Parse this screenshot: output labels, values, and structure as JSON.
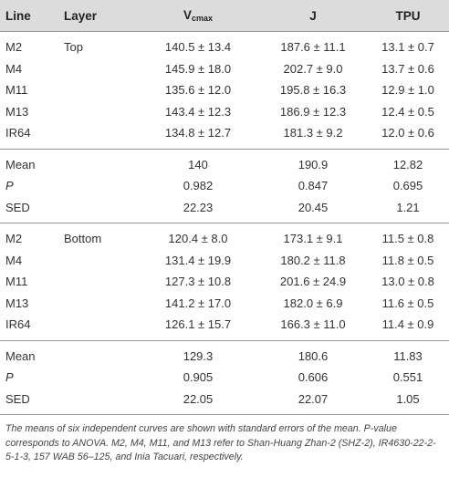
{
  "headers": {
    "line": "Line",
    "layer": "Layer",
    "vcmax_main": "V",
    "vcmax_sub": "cmax",
    "j": "J",
    "tpu": "TPU"
  },
  "top": {
    "layer": "Top",
    "rows": [
      {
        "line": "M2",
        "vcmax": "140.5 ± 13.4",
        "j": "187.6 ± 11.1",
        "tpu": "13.1 ± 0.7"
      },
      {
        "line": "M4",
        "vcmax": "145.9 ± 18.0",
        "j": "202.7 ± 9.0",
        "tpu": "13.7 ± 0.6"
      },
      {
        "line": "M11",
        "vcmax": "135.6 ± 12.0",
        "j": "195.8 ± 16.3",
        "tpu": "12.9 ± 1.0"
      },
      {
        "line": "M13",
        "vcmax": "143.4 ± 12.3",
        "j": "186.9 ± 12.3",
        "tpu": "12.4 ± 0.5"
      },
      {
        "line": "IR64",
        "vcmax": "134.8 ± 12.7",
        "j": "181.3 ± 9.2",
        "tpu": "12.0 ± 0.6"
      }
    ],
    "stats": [
      {
        "label": "Mean",
        "vcmax": "140",
        "j": "190.9",
        "tpu": "12.82"
      },
      {
        "label": "P",
        "vcmax": "0.982",
        "j": "0.847",
        "tpu": "0.695"
      },
      {
        "label": "SED",
        "vcmax": "22.23",
        "j": "20.45",
        "tpu": "1.21"
      }
    ]
  },
  "bottom": {
    "layer": "Bottom",
    "rows": [
      {
        "line": "M2",
        "vcmax": "120.4 ± 8.0",
        "j": "173.1 ± 9.1",
        "tpu": "11.5 ± 0.8"
      },
      {
        "line": "M4",
        "vcmax": "131.4 ± 19.9",
        "j": "180.2 ± 11.8",
        "tpu": "11.8 ± 0.5"
      },
      {
        "line": "M11",
        "vcmax": "127.3 ± 10.8",
        "j": "201.6 ± 24.9",
        "tpu": "13.0 ± 0.8"
      },
      {
        "line": "M13",
        "vcmax": "141.2 ± 17.0",
        "j": "182.0 ± 6.9",
        "tpu": "11.6 ± 0.5"
      },
      {
        "line": "IR64",
        "vcmax": "126.1 ± 15.7",
        "j": "166.3 ± 11.0",
        "tpu": "11.4 ± 0.9"
      }
    ],
    "stats": [
      {
        "label": "Mean",
        "vcmax": "129.3",
        "j": "180.6",
        "tpu": "11.83"
      },
      {
        "label": "P",
        "vcmax": "0.905",
        "j": "0.606",
        "tpu": "0.551"
      },
      {
        "label": "SED",
        "vcmax": "22.05",
        "j": "22.07",
        "tpu": "1.05"
      }
    ]
  },
  "footnote": "The means of six independent curves are shown with standard errors of the mean. P-value corresponds to ANOVA. M2, M4, M11, and M13 refer to Shan-Huang Zhan-2 (SHZ-2), IR4630-22-2-5-1-3, 157 WAB 56–125, and Inia Tacuari, respectively."
}
